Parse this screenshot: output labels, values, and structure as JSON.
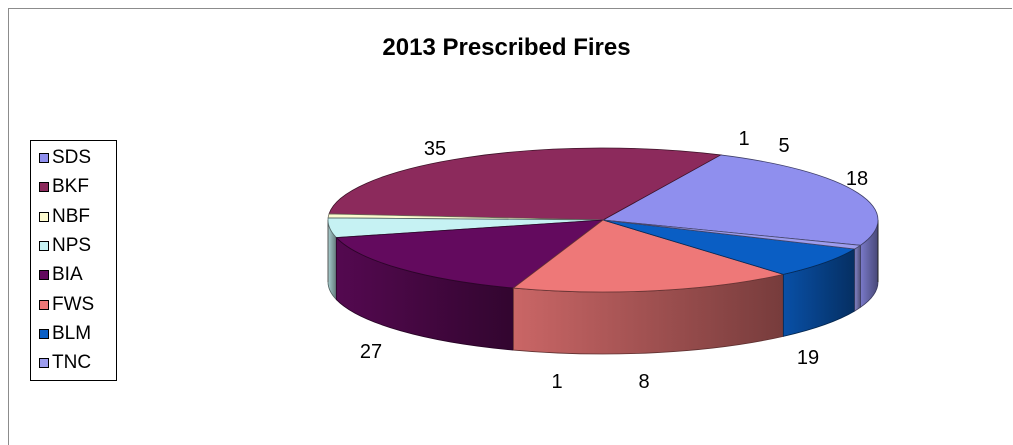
{
  "chart_data": {
    "type": "pie",
    "title": "2013 Prescribed Fires",
    "legend_position": "left",
    "slices": [
      {
        "label": "SDS",
        "value": 27,
        "color": "#8f8fee"
      },
      {
        "label": "BKF",
        "value": 35,
        "color": "#8c2a5c"
      },
      {
        "label": "NBF",
        "value": 1,
        "color": "#fdfbd0"
      },
      {
        "label": "NPS",
        "value": 5,
        "color": "#c6f2f3"
      },
      {
        "label": "BIA",
        "value": 18,
        "color": "#630a5e"
      },
      {
        "label": "FWS",
        "value": 19,
        "color": "#ee7878"
      },
      {
        "label": "BLM",
        "value": 8,
        "color": "#0a5ec4"
      },
      {
        "label": "TNC",
        "value": 1,
        "color": "#9d9dee"
      }
    ]
  }
}
